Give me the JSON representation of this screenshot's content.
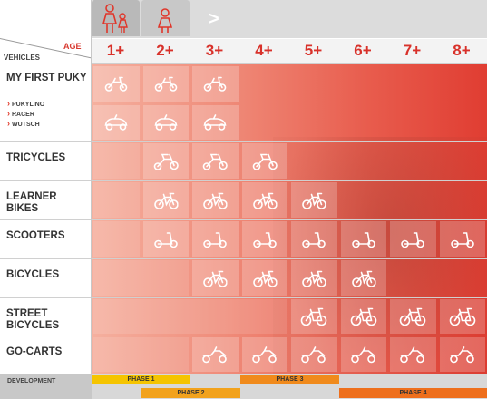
{
  "header": {
    "age_label": "AGE",
    "vehicles_label": "VEHICLES",
    "arrow": ">",
    "icons": [
      "adult-child-icon",
      "child-icon"
    ]
  },
  "ages": [
    "1+",
    "2+",
    "3+",
    "4+",
    "5+",
    "6+",
    "7+",
    "8+"
  ],
  "rows": [
    {
      "label": "MY FIRST PUKY",
      "sub": [
        "PUKYLINO",
        "RACER",
        "WUTSCH"
      ],
      "icons": [
        [
          "rider",
          "rider",
          "rider"
        ],
        [
          "car",
          "car",
          "car"
        ]
      ]
    },
    {
      "label": "TRICYCLES",
      "cells": [
        1,
        2,
        3
      ]
    },
    {
      "label": "LEARNER BIKES",
      "cells": [
        1,
        2,
        3,
        4
      ]
    },
    {
      "label": "SCOOTERS",
      "cells": [
        1,
        2,
        3,
        4,
        5,
        6,
        7
      ]
    },
    {
      "label": "BICYCLES",
      "cells": [
        2,
        3,
        4,
        5
      ]
    },
    {
      "label": "STREET BICYCLES",
      "cells": [
        4,
        5,
        6,
        7
      ]
    },
    {
      "label": "GO-CARTS",
      "cells": [
        2,
        3,
        4,
        5,
        6,
        7
      ]
    }
  ],
  "development": {
    "label": "DEVELOPMENT",
    "phases": [
      {
        "name": "PHASE 1",
        "color": "#f5c400"
      },
      {
        "name": "PHASE 2",
        "color": "#f2a21c"
      },
      {
        "name": "PHASE 3",
        "color": "#f08a1c"
      },
      {
        "name": "PHASE 4",
        "color": "#ee6f1c"
      }
    ]
  },
  "colors": {
    "accent": "#d8312a"
  }
}
